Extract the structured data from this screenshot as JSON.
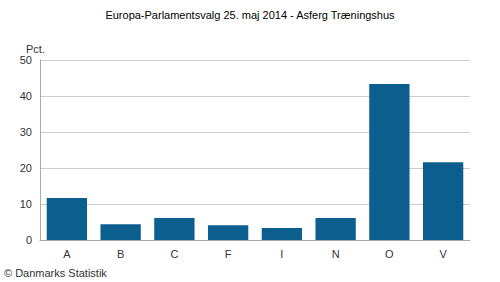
{
  "chart_data": {
    "type": "bar",
    "title": "Europa-Parlamentsvalg 25. maj 2014 - Asferg Træningshus",
    "ylabel": "Pct.",
    "annotations": [
      "© Danmarks Statistik"
    ],
    "categories": [
      "A",
      "B",
      "C",
      "F",
      "I",
      "N",
      "O",
      "V"
    ],
    "values": [
      11.7,
      4.4,
      6.1,
      4.1,
      3.3,
      6.1,
      43.3,
      21.6
    ],
    "color": "#0b5e8e",
    "ylim": [
      0,
      50
    ],
    "yticks": [
      0,
      10,
      20,
      30,
      40,
      50
    ],
    "grid": true
  }
}
